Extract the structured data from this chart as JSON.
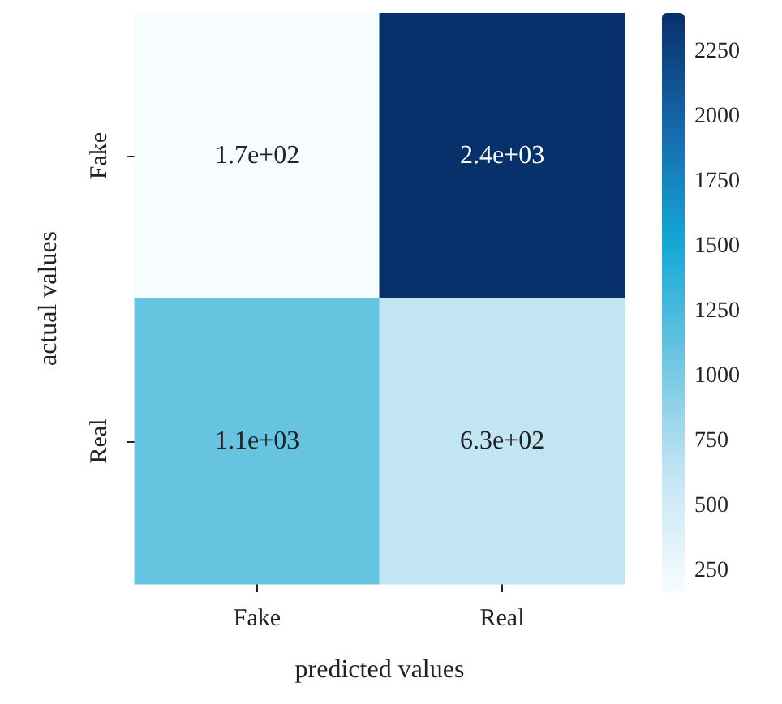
{
  "chart_data": {
    "type": "heatmap",
    "categories": [
      "Fake",
      "Real"
    ],
    "y_categories": [
      "Fake",
      "Real"
    ],
    "cells": [
      [
        170,
        2400
      ],
      [
        1100,
        630
      ]
    ],
    "cell_labels": [
      [
        "1.7e+02",
        "2.4e+03"
      ],
      [
        "1.1e+03",
        "6.3e+02"
      ]
    ],
    "xlabel": "predicted values",
    "ylabel": "actual values",
    "clim": [
      170,
      2400
    ],
    "cticks": [
      250,
      500,
      750,
      1000,
      1250,
      1500,
      1750,
      2000,
      2250
    ]
  }
}
